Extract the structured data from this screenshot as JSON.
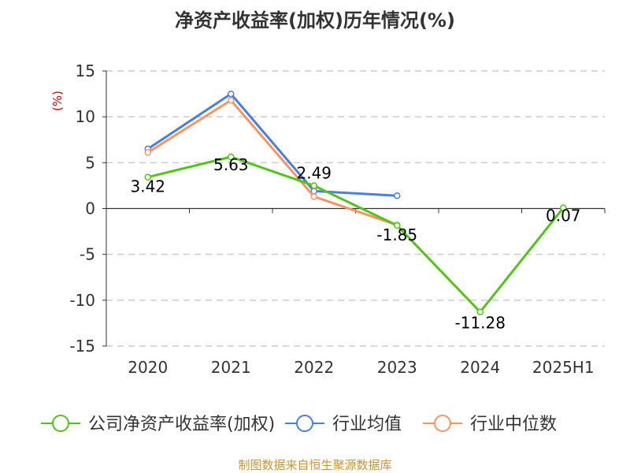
{
  "chart_data": {
    "type": "line",
    "title": "净资产收益率(加权)历年情况(%)",
    "ylabel": "(%)",
    "xlabel": "",
    "categories": [
      "2020",
      "2021",
      "2022",
      "2023",
      "2024",
      "2025H1"
    ],
    "ylim": [
      -15,
      15
    ],
    "yticks": [
      15,
      10,
      5,
      0,
      -5,
      -10,
      -15
    ],
    "grid": true,
    "legend_position": "bottom",
    "series": [
      {
        "name": "公司净资产收益率(加权)",
        "color": "#52c41a",
        "values": [
          3.42,
          5.63,
          2.49,
          -1.85,
          -11.28,
          0.07
        ],
        "labels": [
          "3.42",
          "5.63",
          "2.49",
          "-1.85",
          "-11.28",
          "0.07"
        ]
      },
      {
        "name": "行业均值",
        "color": "#4a7ee0",
        "values": [
          6.5,
          12.5,
          1.9,
          1.4,
          null,
          null
        ]
      },
      {
        "name": "行业中位数",
        "color": "#f59562",
        "values": [
          6.1,
          11.8,
          1.3,
          -1.8,
          null,
          null
        ]
      }
    ]
  },
  "colors": {
    "title": "#333333",
    "ylabel": "#cc0000",
    "axis": "#333333",
    "grid": "#cccccc",
    "footer": "#c8962d"
  },
  "footer": "制图数据来自恒生聚源数据库"
}
